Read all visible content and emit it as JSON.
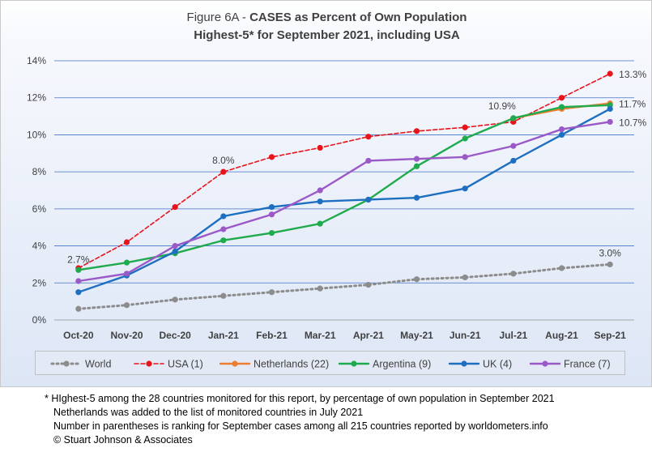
{
  "title": {
    "prefix": "Figure 6A - ",
    "bold": "CASES as Percent of Own Population",
    "line2": "Highest-5* for September 2021, including USA"
  },
  "chart_data": {
    "type": "line",
    "categories": [
      "Oct-20",
      "Nov-20",
      "Dec-20",
      "Jan-21",
      "Feb-21",
      "Mar-21",
      "Apr-21",
      "May-21",
      "Jun-21",
      "Jul-21",
      "Aug-21",
      "Sep-21"
    ],
    "ylim": [
      0,
      14
    ],
    "yticks": [
      "0%",
      "2%",
      "4%",
      "6%",
      "8%",
      "10%",
      "12%",
      "14%"
    ],
    "grid": true,
    "legend_position": "bottom",
    "series": [
      {
        "name": "World",
        "color": "#8c8c8c",
        "style": "dotted",
        "values": [
          0.6,
          0.8,
          1.1,
          1.3,
          1.5,
          1.7,
          1.9,
          2.2,
          2.3,
          2.5,
          2.8,
          3.0
        ]
      },
      {
        "name": "USA (1)",
        "color": "#e8141c",
        "style": "dashed",
        "values": [
          2.8,
          4.2,
          6.1,
          8.0,
          8.8,
          9.3,
          9.9,
          10.2,
          10.4,
          10.7,
          12.0,
          13.3
        ]
      },
      {
        "name": "Netherlands (22)",
        "color": "#ed7d31",
        "style": "solid",
        "values": [
          null,
          null,
          null,
          null,
          null,
          null,
          null,
          null,
          null,
          10.9,
          11.4,
          11.7
        ]
      },
      {
        "name": "Argentina (9)",
        "color": "#1fab4d",
        "style": "solid",
        "values": [
          2.7,
          3.1,
          3.6,
          4.3,
          4.7,
          5.2,
          6.5,
          8.3,
          9.8,
          10.9,
          11.5,
          11.6
        ]
      },
      {
        "name": "UK (4)",
        "color": "#1f6fc0",
        "style": "solid",
        "values": [
          1.5,
          2.4,
          3.7,
          5.6,
          6.1,
          6.4,
          6.5,
          6.6,
          7.1,
          8.6,
          10.0,
          11.4
        ]
      },
      {
        "name": "France (7)",
        "color": "#9b59c8",
        "style": "solid",
        "values": [
          2.1,
          2.5,
          4.0,
          4.9,
          5.7,
          7.0,
          8.6,
          8.7,
          8.8,
          9.4,
          10.3,
          10.7
        ]
      }
    ],
    "annotations": [
      {
        "text": "2.7%",
        "x": "Oct-20",
        "y": 2.7
      },
      {
        "text": "8.0%",
        "x": "Jan-21",
        "y": 8.0
      },
      {
        "text": "10.9%",
        "x": "Jul-21",
        "y": 10.9
      },
      {
        "text": "13.3%",
        "x": "Sep-21",
        "y": 13.3
      },
      {
        "text": "11.7%",
        "x": "Sep-21",
        "y": 11.7
      },
      {
        "text": "10.7%",
        "x": "Sep-21",
        "y": 10.7
      },
      {
        "text": "3.0%",
        "x": "Sep-21",
        "y": 3.0
      }
    ]
  },
  "footnote": {
    "line1": "* HIghest-5 among the 28 countries monitored for this report, by percentage of own population in September 2021",
    "line2": "Netherlands was added to the list of monitored countries in July 2021",
    "line3": "Number in parentheses is ranking for September cases among all 215 countries reported by worldometers.info",
    "line4": "© Stuart Johnson & Associates"
  }
}
